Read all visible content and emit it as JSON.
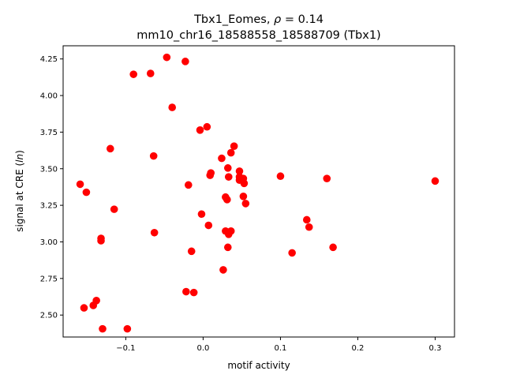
{
  "chart_data": {
    "type": "scatter",
    "title_line1_prefix": "Tbx1_Eomes, ",
    "title_rho_symbol": "ρ",
    "title_rho_value": " = 0.14",
    "title_line2": "mm10_chr16_18588558_18588709 (Tbx1)",
    "xlabel": "motif activity",
    "ylabel_prefix": "signal at CRE (",
    "ylabel_italic": "ln",
    "ylabel_suffix": ")",
    "xlim": [
      -0.181,
      0.325
    ],
    "ylim": [
      2.35,
      4.34
    ],
    "xticks": [
      -0.1,
      0.0,
      0.1,
      0.2,
      0.3
    ],
    "xtick_labels": [
      "−0.1",
      "0.0",
      "0.1",
      "0.2",
      "0.3"
    ],
    "yticks": [
      2.5,
      2.75,
      3.0,
      3.25,
      3.5,
      3.75,
      4.0,
      4.25
    ],
    "ytick_labels": [
      "2.50",
      "2.75",
      "3.00",
      "3.25",
      "3.50",
      "3.75",
      "4.00",
      "4.25"
    ],
    "grid": false,
    "marker_color": "#ff0000",
    "points": [
      [
        -0.159,
        3.394
      ],
      [
        -0.151,
        3.339
      ],
      [
        -0.154,
        2.549
      ],
      [
        -0.142,
        2.566
      ],
      [
        -0.138,
        2.599
      ],
      [
        -0.132,
        3.008
      ],
      [
        -0.132,
        3.024
      ],
      [
        -0.13,
        2.406
      ],
      [
        -0.12,
        3.637
      ],
      [
        -0.115,
        3.223
      ],
      [
        -0.098,
        2.406
      ],
      [
        -0.09,
        4.145
      ],
      [
        -0.068,
        4.151
      ],
      [
        -0.047,
        4.261
      ],
      [
        -0.023,
        4.233
      ],
      [
        -0.04,
        3.919
      ],
      [
        -0.064,
        3.587
      ],
      [
        -0.063,
        3.063
      ],
      [
        -0.019,
        3.389
      ],
      [
        -0.015,
        2.936
      ],
      [
        -0.022,
        2.66
      ],
      [
        -0.012,
        2.654
      ],
      [
        -0.004,
        3.764
      ],
      [
        0.005,
        3.786
      ],
      [
        -0.002,
        3.19
      ],
      [
        0.007,
        3.113
      ],
      [
        0.009,
        3.455
      ],
      [
        0.01,
        3.471
      ],
      [
        0.024,
        3.571
      ],
      [
        0.029,
        3.306
      ],
      [
        0.031,
        3.289
      ],
      [
        0.029,
        3.074
      ],
      [
        0.033,
        3.052
      ],
      [
        0.036,
        3.074
      ],
      [
        0.032,
        2.963
      ],
      [
        0.026,
        2.809
      ],
      [
        0.032,
        3.505
      ],
      [
        0.033,
        3.444
      ],
      [
        0.036,
        3.609
      ],
      [
        0.04,
        3.654
      ],
      [
        0.047,
        3.483
      ],
      [
        0.047,
        3.444
      ],
      [
        0.047,
        3.422
      ],
      [
        0.052,
        3.433
      ],
      [
        0.053,
        3.4
      ],
      [
        0.052,
        3.311
      ],
      [
        0.055,
        3.262
      ],
      [
        0.1,
        3.449
      ],
      [
        0.134,
        3.151
      ],
      [
        0.137,
        3.101
      ],
      [
        0.115,
        2.925
      ],
      [
        0.16,
        3.433
      ],
      [
        0.168,
        2.963
      ],
      [
        0.3,
        3.416
      ]
    ]
  }
}
